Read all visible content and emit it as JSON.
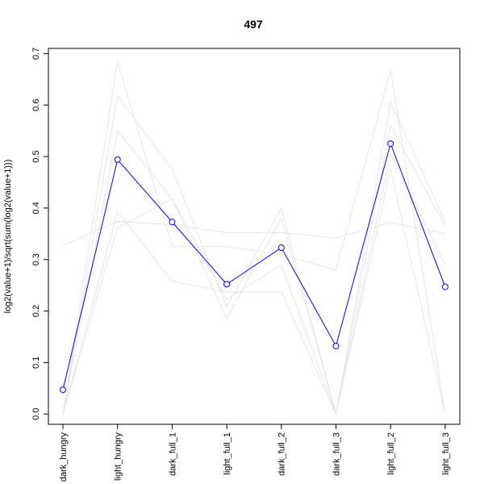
{
  "chart_data": {
    "type": "line",
    "title": "497",
    "xlabel": "",
    "ylabel": "log2(value+1)/sqrt(sum(log2(value+1)))",
    "categories": [
      "dark_hungry",
      "light_hungry",
      "dark_full_1",
      "light_full_1",
      "dark_full_2",
      "dark_full_3",
      "light_full_2",
      "light_full_3"
    ],
    "ylim": [
      -0.02,
      0.71
    ],
    "yticks": [
      "0.0",
      "0.1",
      "0.2",
      "0.3",
      "0.4",
      "0.5",
      "0.6",
      "0.7"
    ],
    "grid": false,
    "highlight_series": {
      "values": [
        0.047,
        0.494,
        0.373,
        0.252,
        0.323,
        0.132,
        0.525,
        0.247
      ],
      "color": "#0000ff",
      "markers": "open-circle"
    },
    "background_series": {
      "color": "#e6e6e6",
      "lines": [
        [
          0.327,
          0.374,
          0.368,
          0.352,
          0.352,
          0.342,
          0.372,
          0.35
        ],
        [
          0.0,
          0.684,
          0.325,
          0.325,
          0.31,
          0.28,
          0.668,
          0.0
        ],
        [
          0.0,
          0.617,
          0.475,
          0.208,
          0.4,
          0.0,
          0.605,
          0.373
        ],
        [
          0.0,
          0.55,
          0.418,
          0.185,
          0.38,
          0.0,
          0.56,
          0.365
        ],
        [
          0.0,
          0.393,
          0.258,
          0.237,
          0.237,
          0.0,
          0.475,
          0.0
        ],
        [
          0.0,
          0.362,
          0.418,
          0.222,
          0.29,
          0.0,
          0.505,
          0.29
        ]
      ]
    }
  }
}
